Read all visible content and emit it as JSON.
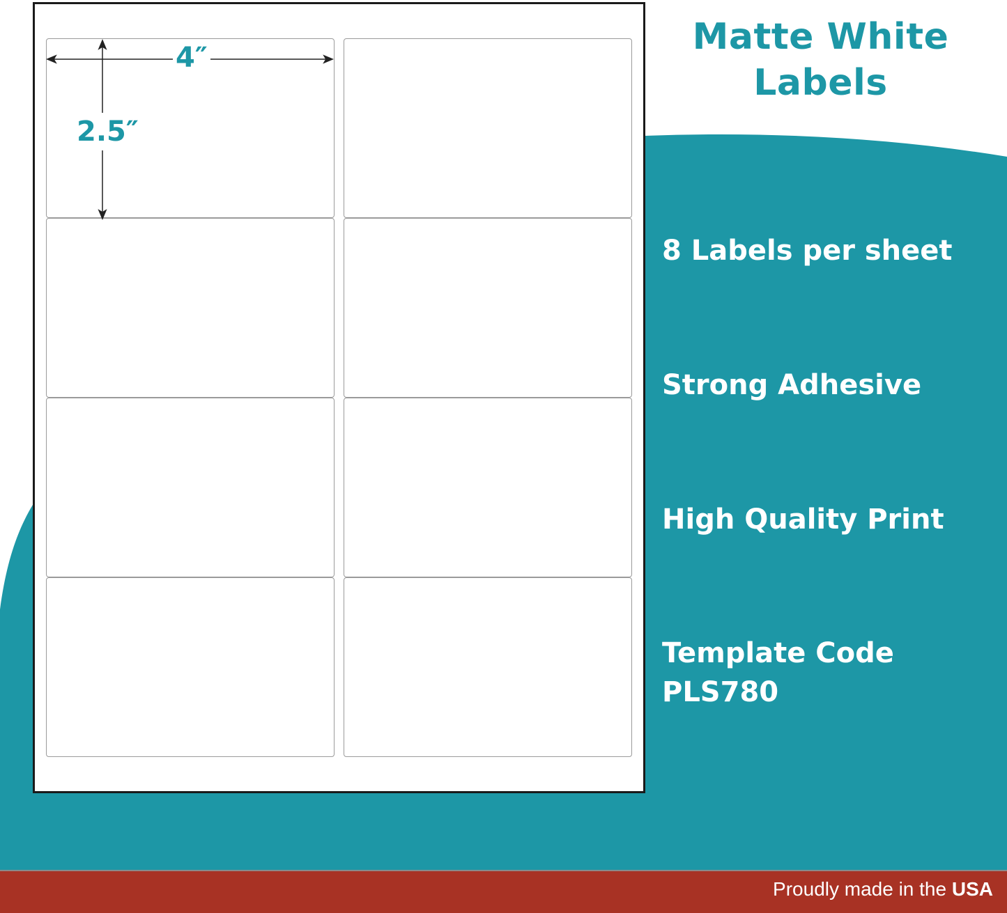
{
  "colors": {
    "teal": "#1d97a6",
    "red": "#a83224",
    "sheet_border": "#1a1a1a"
  },
  "title": {
    "line1": "Matte White",
    "line2": "Labels"
  },
  "dimensions": {
    "width": "4″",
    "height": "2.5″"
  },
  "sheet": {
    "label_count": 8,
    "columns": 2,
    "rows": 4
  },
  "features": [
    "8 Labels per sheet",
    "Strong Adhesive",
    "High Quality Print",
    "Template Code",
    "PLS780"
  ],
  "footer": {
    "text": "Proudly made in the",
    "emphasis": "USA"
  }
}
